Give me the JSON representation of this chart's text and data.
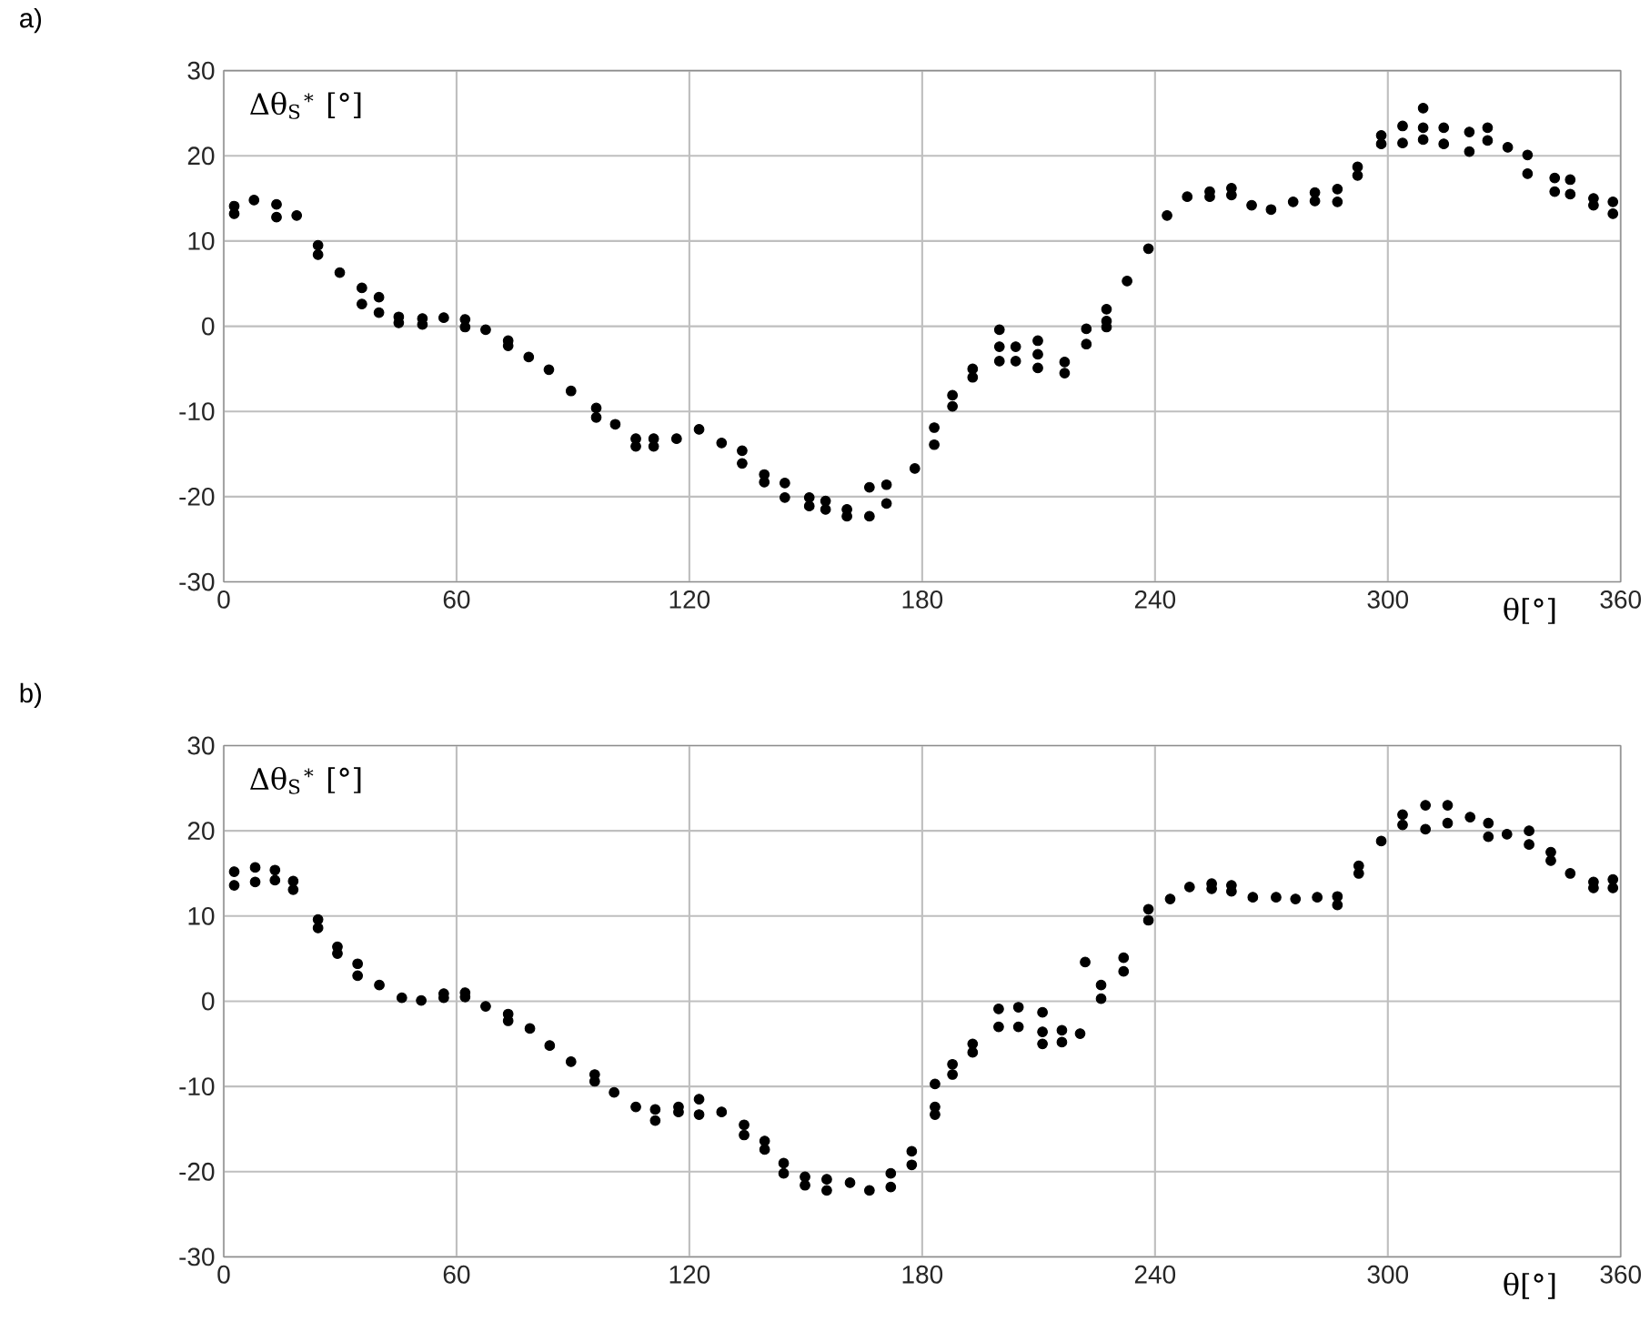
{
  "chart_data": [
    {
      "type": "scatter",
      "title": "a)",
      "xlabel": "θ[°]",
      "ylabel": "Δθ$_{S}$$^{∗}$ [°]",
      "color": "#000000",
      "marker": "circle",
      "grid": true,
      "xlim": [
        0,
        360
      ],
      "ylim": [
        -30,
        30
      ],
      "xticks": [
        0,
        60,
        120,
        180,
        240,
        300,
        360
      ],
      "yticks": [
        -30,
        -20,
        -10,
        0,
        10,
        20,
        30
      ],
      "x": [
        2.7,
        2.7,
        7.8,
        13.6,
        13.6,
        18.8,
        24.3,
        24.3,
        29.9,
        35.6,
        35.6,
        40,
        40,
        45.1,
        45.1,
        51.2,
        51.2,
        56.7,
        62.2,
        62.2,
        67.5,
        73.3,
        73.3,
        78.6,
        83.8,
        89.5,
        96,
        96,
        100.9,
        106.2,
        106.2,
        110.8,
        110.8,
        116.7,
        122.5,
        128.3,
        133.6,
        133.6,
        139.3,
        139.3,
        144.6,
        144.6,
        150.9,
        150.9,
        155.1,
        155.1,
        160.6,
        160.6,
        166.4,
        166.4,
        170.8,
        170.8,
        178.1,
        183.1,
        183.1,
        187.8,
        187.8,
        193,
        193,
        199.9,
        199.9,
        199.9,
        204.1,
        204.1,
        209.8,
        209.8,
        209.8,
        216.7,
        216.7,
        222.3,
        222.3,
        227.5,
        227.5,
        227.5,
        232.8,
        238.3,
        243.1,
        248.3,
        254.1,
        254.1,
        259.7,
        259.7,
        264.9,
        269.9,
        275.6,
        281.2,
        281.2,
        287,
        287,
        292.2,
        292.2,
        298.3,
        298.3,
        303.8,
        303.8,
        309.1,
        309.1,
        309.1,
        314.4,
        314.4,
        321,
        321,
        325.7,
        325.7,
        330.9,
        336,
        336,
        343,
        343,
        347,
        347,
        353,
        353,
        358,
        358
      ],
      "values": [
        14.1,
        13.2,
        14.8,
        14.3,
        12.8,
        13.0,
        9.5,
        8.4,
        6.3,
        4.5,
        2.6,
        3.4,
        1.6,
        1.1,
        0.4,
        0.9,
        0.2,
        1.0,
        0.8,
        -0.1,
        -0.4,
        -1.7,
        -2.3,
        -3.6,
        -5.1,
        -7.6,
        -9.6,
        -10.7,
        -11.5,
        -13.2,
        -14.1,
        -13.2,
        -14.1,
        -13.2,
        -12.1,
        -13.7,
        -14.6,
        -16.1,
        -17.4,
        -18.3,
        -18.4,
        -20.1,
        -20.1,
        -21.1,
        -20.5,
        -21.5,
        -21.5,
        -22.3,
        -22.3,
        -18.9,
        -18.6,
        -20.8,
        -16.7,
        -11.9,
        -13.9,
        -8.1,
        -9.4,
        -5.0,
        -6.0,
        -0.4,
        -2.4,
        -4.1,
        -2.4,
        -4.1,
        -1.7,
        -3.3,
        -4.9,
        -4.2,
        -5.5,
        -0.3,
        -2.1,
        2.0,
        0.6,
        -0.1,
        5.3,
        9.1,
        13.0,
        15.2,
        15.8,
        15.2,
        16.2,
        15.4,
        14.2,
        13.7,
        14.6,
        15.7,
        14.7,
        16.1,
        14.6,
        18.7,
        17.7,
        22.4,
        21.4,
        23.5,
        21.5,
        25.6,
        23.3,
        21.9,
        23.3,
        21.4,
        22.8,
        20.5,
        23.3,
        21.8,
        21.0,
        20.1,
        17.9,
        17.4,
        15.8,
        17.2,
        15.5,
        15.0,
        14.2,
        14.6,
        13.2
      ]
    },
    {
      "type": "scatter",
      "title": "b)",
      "xlabel": "θ[°]",
      "ylabel": "Δθ$_{S}$$^{∗}$ [°]",
      "color": "#000000",
      "marker": "circle",
      "grid": true,
      "xlim": [
        0,
        360
      ],
      "ylim": [
        -30,
        30
      ],
      "xticks": [
        0,
        60,
        120,
        180,
        240,
        300,
        360
      ],
      "yticks": [
        -30,
        -20,
        -10,
        0,
        10,
        20,
        30
      ],
      "x": [
        2.7,
        2.7,
        8.1,
        8.1,
        13.2,
        13.2,
        17.9,
        17.9,
        24.3,
        24.3,
        29.3,
        29.3,
        34.5,
        34.5,
        40.1,
        45.9,
        50.9,
        56.7,
        56.7,
        62.2,
        62.2,
        67.5,
        73.3,
        73.3,
        78.9,
        84,
        89.5,
        95.6,
        95.6,
        100.6,
        106.2,
        111.2,
        111.2,
        117.2,
        117.2,
        122.5,
        122.5,
        128.3,
        134.1,
        134.1,
        139.4,
        139.4,
        144.3,
        144.3,
        149.8,
        149.8,
        155.4,
        155.4,
        161.4,
        166.4,
        171.9,
        171.9,
        177.3,
        177.3,
        183.3,
        183.3,
        183.3,
        187.8,
        187.8,
        193,
        193,
        199.7,
        199.7,
        204.8,
        204.8,
        211,
        211,
        211,
        216,
        216,
        220.7,
        222,
        226.1,
        226.1,
        231.9,
        231.9,
        238.3,
        238.3,
        243.9,
        248.9,
        254.6,
        254.6,
        259.7,
        259.7,
        265.2,
        271.2,
        276.2,
        281.8,
        287,
        287,
        292.5,
        292.5,
        298.3,
        303.8,
        303.8,
        309.7,
        309.7,
        315.4,
        315.4,
        321.2,
        325.9,
        325.9,
        330.7,
        336.4,
        336.4,
        342,
        342,
        347,
        353,
        353,
        358,
        358
      ],
      "values": [
        15.2,
        13.6,
        15.7,
        14.0,
        15.4,
        14.2,
        14.1,
        13.1,
        9.6,
        8.6,
        6.4,
        5.6,
        4.4,
        3.0,
        1.9,
        0.4,
        0.1,
        0.9,
        0.4,
        1.0,
        0.5,
        -0.6,
        -1.5,
        -2.3,
        -3.2,
        -5.2,
        -7.1,
        -8.6,
        -9.4,
        -10.7,
        -12.4,
        -12.7,
        -14.0,
        -12.4,
        -13.0,
        -11.5,
        -13.3,
        -13.0,
        -14.5,
        -15.7,
        -16.4,
        -17.4,
        -19.0,
        -20.2,
        -20.6,
        -21.6,
        -20.9,
        -22.2,
        -21.3,
        -22.2,
        -20.2,
        -21.8,
        -17.6,
        -19.2,
        -9.7,
        -12.4,
        -13.3,
        -7.4,
        -8.6,
        -5.0,
        -6.0,
        -0.9,
        -3.0,
        -0.7,
        -3.0,
        -1.3,
        -3.6,
        -5.0,
        -3.4,
        -4.8,
        -3.8,
        4.6,
        1.9,
        0.3,
        5.1,
        3.5,
        10.8,
        9.5,
        12.0,
        13.4,
        13.8,
        13.2,
        13.6,
        12.9,
        12.2,
        12.2,
        12.0,
        12.2,
        12.3,
        11.3,
        15.9,
        15.0,
        18.8,
        21.9,
        20.7,
        23.0,
        20.2,
        23.0,
        20.9,
        21.6,
        20.9,
        19.3,
        19.6,
        20.0,
        18.4,
        17.5,
        16.5,
        15.0,
        14.0,
        13.3,
        14.3,
        13.3
      ]
    }
  ]
}
